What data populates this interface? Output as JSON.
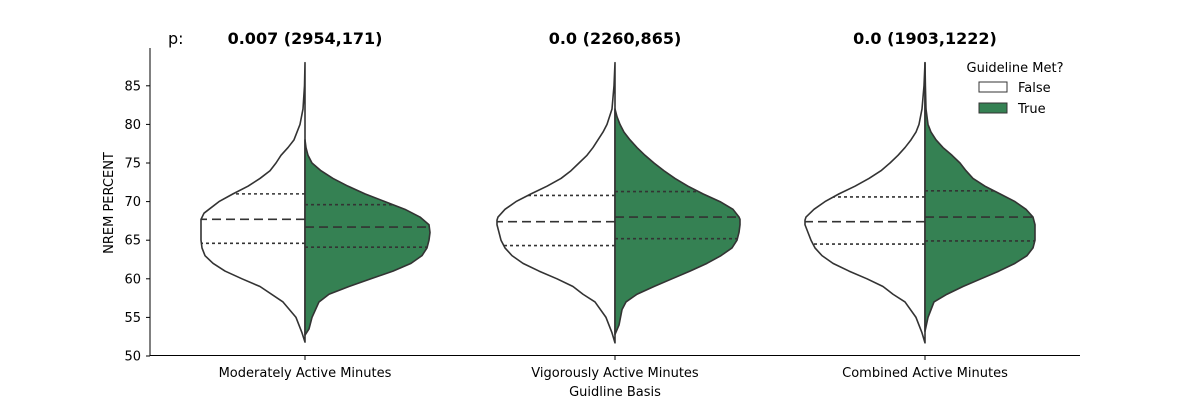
{
  "chart_data": {
    "type": "violin",
    "split": true,
    "xlabel": "Guidline Basis",
    "ylabel": "NREM PERCENT",
    "ylim": [
      50,
      88
    ],
    "yticks": [
      50,
      55,
      60,
      65,
      70,
      75,
      80,
      85
    ],
    "categories": [
      "Moderately Active Minutes",
      "Vigorously Active Minutes",
      "Combined Active Minutes"
    ],
    "p_prefix": "p:",
    "p_labels": [
      "0.007 (2954,171)",
      "0.0 (2260,865)",
      "0.0 (1903,1222)"
    ],
    "inner": "quartile",
    "legend": {
      "title": "Guideline Met?",
      "position": "top-right",
      "entries": [
        "False",
        "True"
      ]
    },
    "colors": {
      "False": "#ffffff",
      "True": "#358153",
      "edge": "#333333"
    },
    "series": [
      {
        "name": "False",
        "quartiles": [
          [
            64.6,
            67.7,
            71.0
          ],
          [
            64.3,
            67.4,
            70.8
          ],
          [
            64.5,
            67.4,
            70.6
          ]
        ],
        "range": [
          [
            51.8,
            88.0
          ],
          [
            51.7,
            88.0
          ],
          [
            51.7,
            88.0
          ]
        ]
      },
      {
        "name": "True",
        "quartiles": [
          [
            64.1,
            66.7,
            69.6
          ],
          [
            65.2,
            68.0,
            71.3
          ],
          [
            64.9,
            68.0,
            71.4
          ]
        ],
        "range": [
          [
            52.7,
            78.0
          ],
          [
            52.8,
            82.0
          ],
          [
            53.2,
            88.0
          ]
        ]
      }
    ]
  }
}
